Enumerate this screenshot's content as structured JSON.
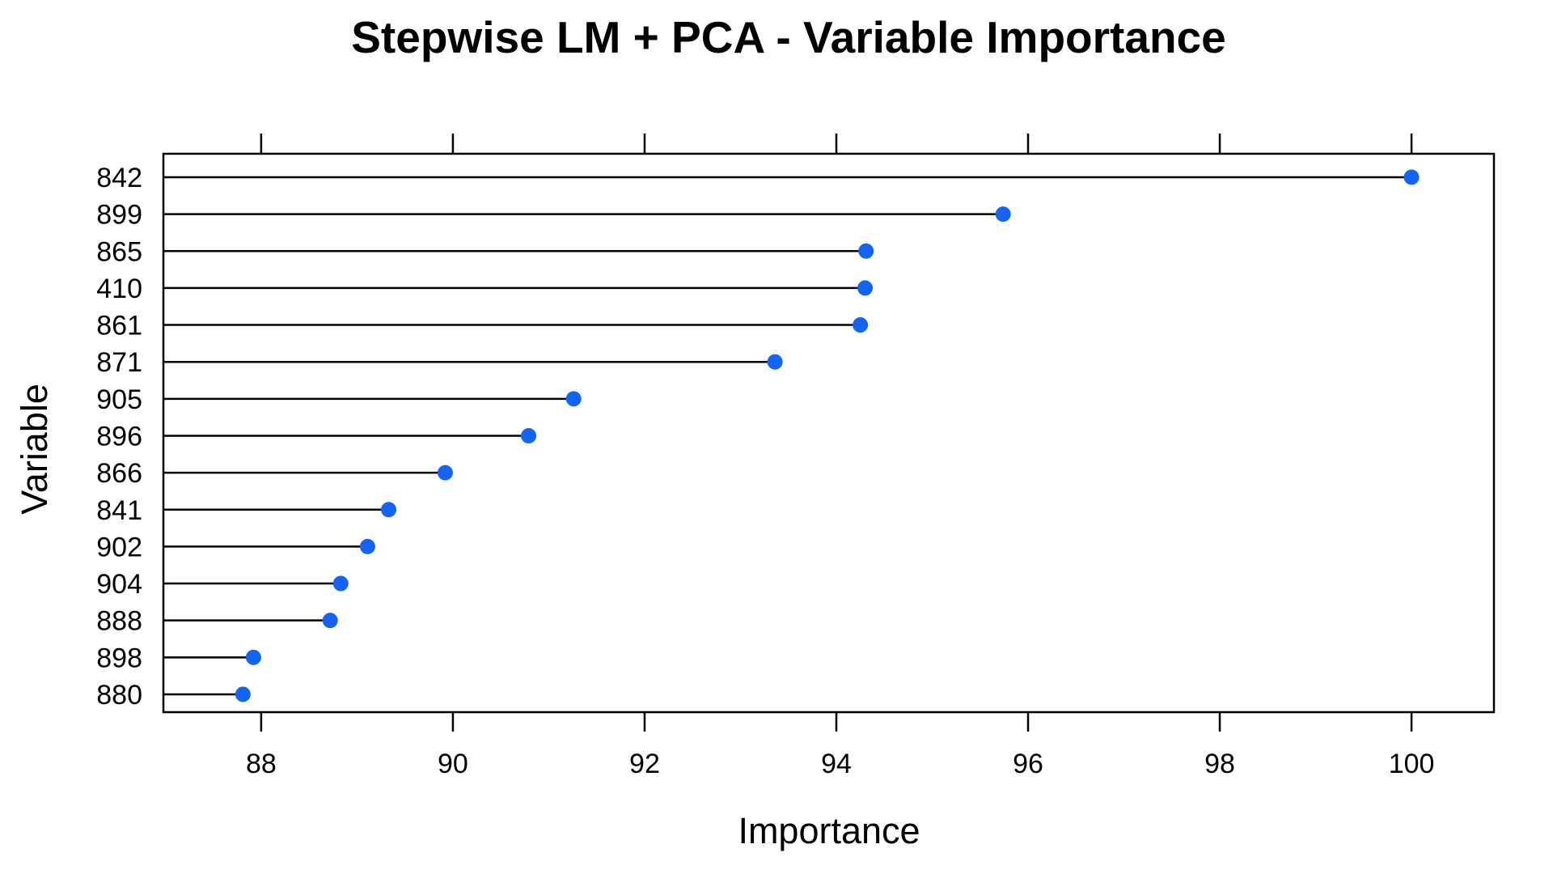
{
  "chart_data": {
    "type": "scatter",
    "style": "dot-lollipop",
    "title": "Stepwise LM + PCA - Variable Importance",
    "xlabel": "Importance",
    "ylabel": "Variable",
    "xlim": [
      86.98,
      100.86
    ],
    "xticks": [
      "88",
      "90",
      "92",
      "94",
      "96",
      "98",
      "100"
    ],
    "xtick_values": [
      88,
      90,
      92,
      94,
      96,
      98,
      100
    ],
    "grid": false,
    "legend": "none",
    "colors": {
      "point": "#1464F4",
      "stem": "#000000",
      "frame": "#000000"
    },
    "categories": [
      "842",
      "899",
      "865",
      "410",
      "861",
      "871",
      "905",
      "896",
      "866",
      "841",
      "902",
      "904",
      "888",
      "898",
      "880"
    ],
    "values": [
      100.0,
      95.74,
      94.31,
      94.3,
      94.25,
      93.36,
      91.26,
      90.79,
      89.92,
      89.33,
      89.11,
      88.83,
      88.72,
      87.92,
      87.81
    ]
  }
}
